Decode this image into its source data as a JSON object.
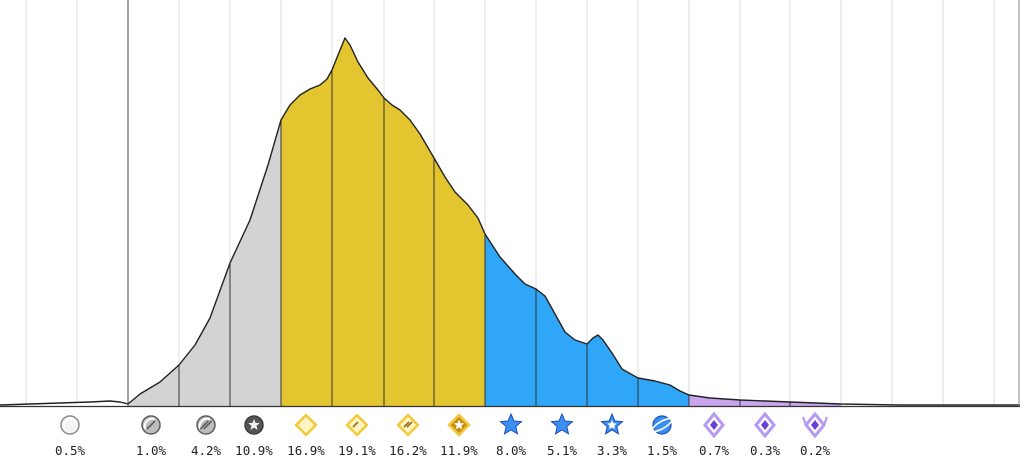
{
  "chart_data": {
    "type": "area",
    "title": "",
    "xlabel": "",
    "ylabel": "",
    "legend": "none",
    "grid": true,
    "categories": [
      "Unranked",
      "Silver I",
      "Silver II",
      "Silver III",
      "Gold I",
      "Gold II",
      "Gold III",
      "Gold IV",
      "Platinum I",
      "Platinum II",
      "Platinum III",
      "Platinum IV",
      "Diamond I",
      "Diamond II",
      "Diamond III"
    ],
    "values": [
      0.5,
      1.0,
      4.2,
      10.9,
      16.9,
      19.1,
      16.2,
      11.9,
      8.0,
      5.1,
      3.3,
      1.5,
      0.7,
      0.3,
      0.2
    ],
    "labels": [
      "0.5%",
      "1.0%",
      "4.2%",
      "10.9%",
      "16.9%",
      "19.1%",
      "16.2%",
      "11.9%",
      "8.0%",
      "5.1%",
      "3.3%",
      "1.5%",
      "0.7%",
      "0.3%",
      "0.2%"
    ],
    "band_groups": [
      {
        "name": "unranked",
        "color": "#ffffff",
        "from": 0,
        "to": 0
      },
      {
        "name": "silver",
        "color": "#d3d3d3",
        "from": 1,
        "to": 3
      },
      {
        "name": "gold",
        "color": "#e3c530",
        "from": 4,
        "to": 7
      },
      {
        "name": "platinum",
        "color": "#2fa6f7",
        "from": 8,
        "to": 11
      },
      {
        "name": "diamond",
        "color": "#c9a5ee",
        "from": 12,
        "to": 14
      }
    ],
    "icons": [
      "unranked-icon",
      "silver-1-icon",
      "silver-2-icon",
      "silver-3-icon",
      "gold-1-icon",
      "gold-2-icon",
      "gold-3-icon",
      "gold-4-icon",
      "platinum-1-icon",
      "platinum-2-icon",
      "platinum-3-icon",
      "platinum-4-icon",
      "diamond-1-icon",
      "diamond-2-icon",
      "diamond-3-icon"
    ]
  }
}
